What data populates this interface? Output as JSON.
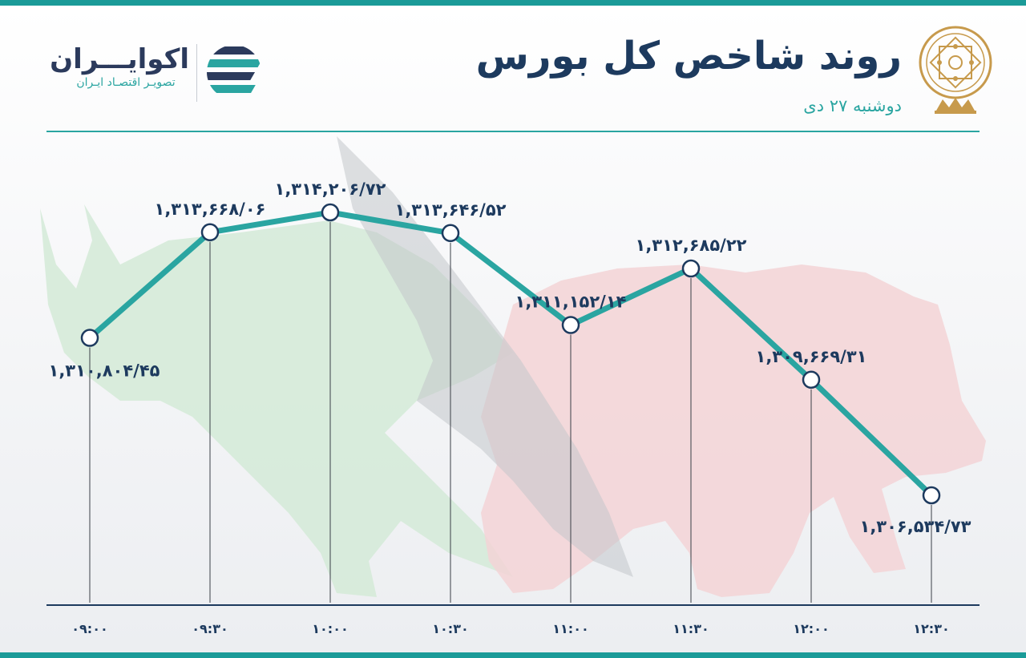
{
  "header": {
    "title": "روند شاخص کل بورس",
    "subtitle": "دوشنبه ۲۷ دی"
  },
  "brand": {
    "name": "اکوایـــران",
    "tagline": "تصویـر اقتصـاد ایـران"
  },
  "colors": {
    "accent": "#1b9b98",
    "line": "#2aa5a1",
    "text": "#1d3a5e",
    "bull": "#d3ead7",
    "bear": "#f3d3d6",
    "emblem": "#c79a4c"
  },
  "chart_data": {
    "type": "line",
    "x": [
      "۰۹:۰۰",
      "۰۹:۳۰",
      "۱۰:۰۰",
      "۱۰:۳۰",
      "۱۱:۰۰",
      "۱۱:۳۰",
      "۱۲:۰۰",
      "۱۲:۳۰"
    ],
    "values": [
      1310804.45,
      1313668.06,
      1314206.72,
      1313646.52,
      1311152.14,
      1312685.22,
      1309669.31,
      1306534.73
    ],
    "value_labels": [
      "۱,۳۱۰,۸۰۴/۴۵",
      "۱,۳۱۳,۶۶۸/۰۶",
      "۱,۳۱۴,۲۰۶/۷۲",
      "۱,۳۱۳,۶۴۶/۵۲",
      "۱,۳۱۱,۱۵۲/۱۴",
      "۱,۳۱۲,۶۸۵/۲۲",
      "۱,۳۰۹,۶۶۹/۳۱",
      "۱,۳۰۶,۵۳۴/۷۳"
    ],
    "title": "روند شاخص کل بورس",
    "xlabel": "",
    "ylabel": "",
    "grid": false,
    "legend": "none"
  }
}
